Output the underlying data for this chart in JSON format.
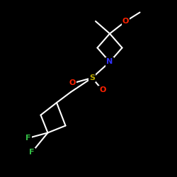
{
  "bg": "#000000",
  "bc": "#ffffff",
  "N_c": "#3333ff",
  "S_c": "#bbaa00",
  "O_c": "#ff2200",
  "F_c": "#33bb44",
  "lw": 1.5,
  "fs": 8.0,
  "xlim": [
    0,
    10
  ],
  "ylim": [
    0,
    10
  ],
  "figsize": [
    2.5,
    2.5
  ],
  "dpi": 100
}
